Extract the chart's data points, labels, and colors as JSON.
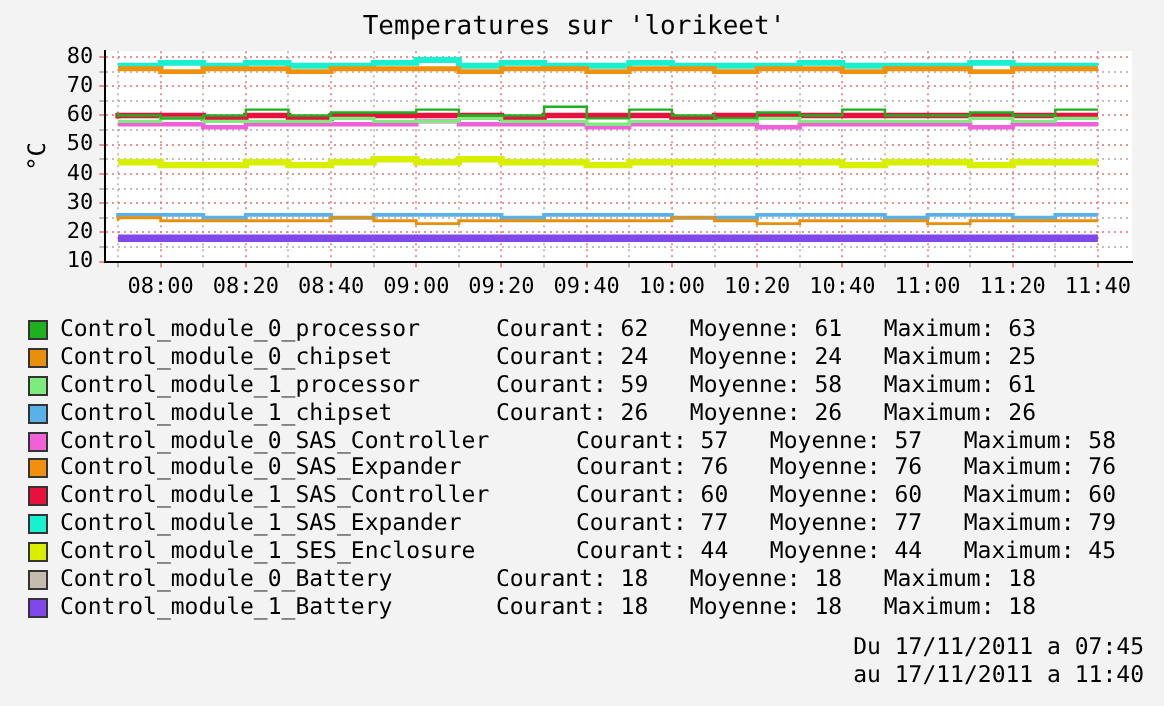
{
  "chart_data": {
    "type": "step",
    "title": "Temperatures sur 'lorikeet'",
    "ylabel": "°C",
    "x": [
      7.8333,
      8,
      8.1667,
      8.3333,
      8.5,
      8.6667,
      8.8333,
      9,
      9.1667,
      9.3333,
      9.5,
      9.6667,
      9.8333,
      10,
      10.1667,
      10.3333,
      10.5,
      10.6667,
      10.8333,
      11,
      11.1667,
      11.3333,
      11.5,
      11.6667
    ],
    "xlim": [
      7.7833,
      11.8
    ],
    "xticks": [
      {
        "value": 7.8333,
        "label": null
      },
      {
        "value": 8,
        "label": "08:00"
      },
      {
        "value": 8.1667,
        "label": null
      },
      {
        "value": 8.3333,
        "label": "08:20"
      },
      {
        "value": 8.5,
        "label": null
      },
      {
        "value": 8.6667,
        "label": "08:40"
      },
      {
        "value": 8.8333,
        "label": null
      },
      {
        "value": 9,
        "label": "09:00"
      },
      {
        "value": 9.1667,
        "label": null
      },
      {
        "value": 9.3333,
        "label": "09:20"
      },
      {
        "value": 9.5,
        "label": null
      },
      {
        "value": 9.6667,
        "label": "09:40"
      },
      {
        "value": 9.8333,
        "label": null
      },
      {
        "value": 10,
        "label": "10:00"
      },
      {
        "value": 10.1667,
        "label": null
      },
      {
        "value": 10.3333,
        "label": "10:20"
      },
      {
        "value": 10.5,
        "label": null
      },
      {
        "value": 10.6667,
        "label": "10:40"
      },
      {
        "value": 10.8333,
        "label": null
      },
      {
        "value": 11,
        "label": "11:00"
      },
      {
        "value": 11.1667,
        "label": null
      },
      {
        "value": 11.3333,
        "label": "11:20"
      },
      {
        "value": 11.5,
        "label": null
      },
      {
        "value": 11.6667,
        "label": "11:40"
      }
    ],
    "ylim": [
      10,
      82
    ],
    "yticks": [
      10,
      {
        "value": 15,
        "label": null
      },
      20,
      {
        "value": 25,
        "label": null
      },
      30,
      {
        "value": 35,
        "label": null
      },
      40,
      {
        "value": 45,
        "label": null
      },
      50,
      {
        "value": 55,
        "label": null
      },
      60,
      {
        "value": 65,
        "label": null
      },
      70,
      {
        "value": 75,
        "label": null
      },
      80
    ],
    "grid": true,
    "legend": "bottom",
    "series": [
      {
        "name": "Control_module_0_processor",
        "color": "#1fb01f",
        "values": [
          61,
          60,
          59,
          60,
          62,
          60,
          61,
          61,
          62,
          60,
          60,
          63,
          59,
          62,
          60,
          59,
          61,
          60,
          62,
          60,
          60,
          61,
          60,
          62
        ]
      },
      {
        "name": "Control_module_0_chipset",
        "color": "#e8900c",
        "values": [
          24,
          25,
          24,
          24,
          24,
          24,
          25,
          24,
          23,
          24,
          24,
          24,
          24,
          24,
          25,
          24,
          23,
          24,
          24,
          24,
          23,
          24,
          24,
          24
        ]
      },
      {
        "name": "Control_module_1_processor",
        "color": "#7ced7c",
        "values": [
          58,
          58,
          59,
          58,
          58,
          58,
          59,
          58,
          58,
          59,
          58,
          58,
          57,
          58,
          58,
          58,
          59,
          58,
          58,
          58,
          58,
          59,
          58,
          59
        ]
      },
      {
        "name": "Control_module_1_chipset",
        "color": "#5ab0e8",
        "values": [
          25,
          26,
          26,
          25,
          26,
          26,
          25,
          26,
          26,
          26,
          25,
          26,
          26,
          26,
          25,
          25,
          26,
          26,
          26,
          25,
          26,
          26,
          25,
          26
        ]
      },
      {
        "name": "Control_module_0_SAS_Controller",
        "color": "#f060d8",
        "values": [
          57,
          57,
          57,
          56,
          57,
          57,
          57,
          57,
          58,
          57,
          57,
          57,
          56,
          57,
          57,
          57,
          56,
          57,
          57,
          57,
          57,
          56,
          57,
          57
        ]
      },
      {
        "name": "Control_module_0_SAS_Expander",
        "color": "#f0900c",
        "values": [
          76,
          76,
          75,
          76,
          76,
          75,
          76,
          76,
          76,
          75,
          76,
          76,
          75,
          76,
          76,
          75,
          76,
          76,
          75,
          76,
          76,
          75,
          76,
          76
        ]
      },
      {
        "name": "Control_module_1_SAS_Controller",
        "color": "#e8103c",
        "values": [
          59,
          60,
          60,
          59,
          60,
          59,
          60,
          60,
          60,
          60,
          59,
          60,
          60,
          60,
          59,
          60,
          60,
          60,
          60,
          60,
          60,
          60,
          60,
          60
        ]
      },
      {
        "name": "Control_module_1_SAS_Expander",
        "color": "#18f0d0",
        "values": [
          77,
          77,
          78,
          77,
          78,
          77,
          77,
          78,
          79,
          77,
          78,
          77,
          77,
          78,
          77,
          77,
          77,
          78,
          77,
          77,
          77,
          78,
          77,
          77
        ]
      },
      {
        "name": "Control_module_1_SES_Enclosure",
        "color": "#d8f000",
        "values": [
          44,
          44,
          43,
          43,
          44,
          43,
          44,
          45,
          44,
          45,
          44,
          44,
          43,
          44,
          44,
          44,
          44,
          44,
          43,
          44,
          44,
          43,
          44,
          44
        ]
      },
      {
        "name": "Control_module_0_Battery",
        "color": "#c4bcac",
        "values": [
          null,
          null,
          null,
          null,
          null,
          null,
          null,
          null,
          null,
          null,
          null,
          null,
          null,
          null,
          null,
          null,
          null,
          null,
          null,
          null,
          null,
          null,
          null,
          null
        ]
      },
      {
        "name": "Control_module_1_Battery",
        "color": "#8048e8",
        "values": [
          18,
          18,
          18,
          18,
          18,
          18,
          18,
          18,
          18,
          18,
          18,
          18,
          18,
          18,
          18,
          18,
          18,
          18,
          18,
          18,
          18,
          18,
          18,
          18
        ]
      }
    ],
    "annotations": [
      "Courant: 62   Moyenne: 61   Maximum: 63",
      "Courant: 24   Moyenne: 24   Maximum: 25",
      "Courant: 59   Moyenne: 58   Maximum: 61",
      "Courant: 26   Moyenne: 26   Maximum: 26",
      "Courant: 57   Moyenne: 57   Maximum: 58",
      "Courant: 76   Moyenne: 76   Maximum: 76",
      "Courant: 60   Moyenne: 60   Maximum: 60",
      "Courant: 77   Moyenne: 77   Maximum: 79",
      "Courant: 44   Moyenne: 44   Maximum: 45",
      "Courant: 18   Moyenne: 18   Maximum: 18",
      "Courant: 18   Moyenne: 18   Maximum: 18",
      "Du 17/11/2011 a 07:45",
      "au 17/11/2011 a 11:40"
    ]
  }
}
